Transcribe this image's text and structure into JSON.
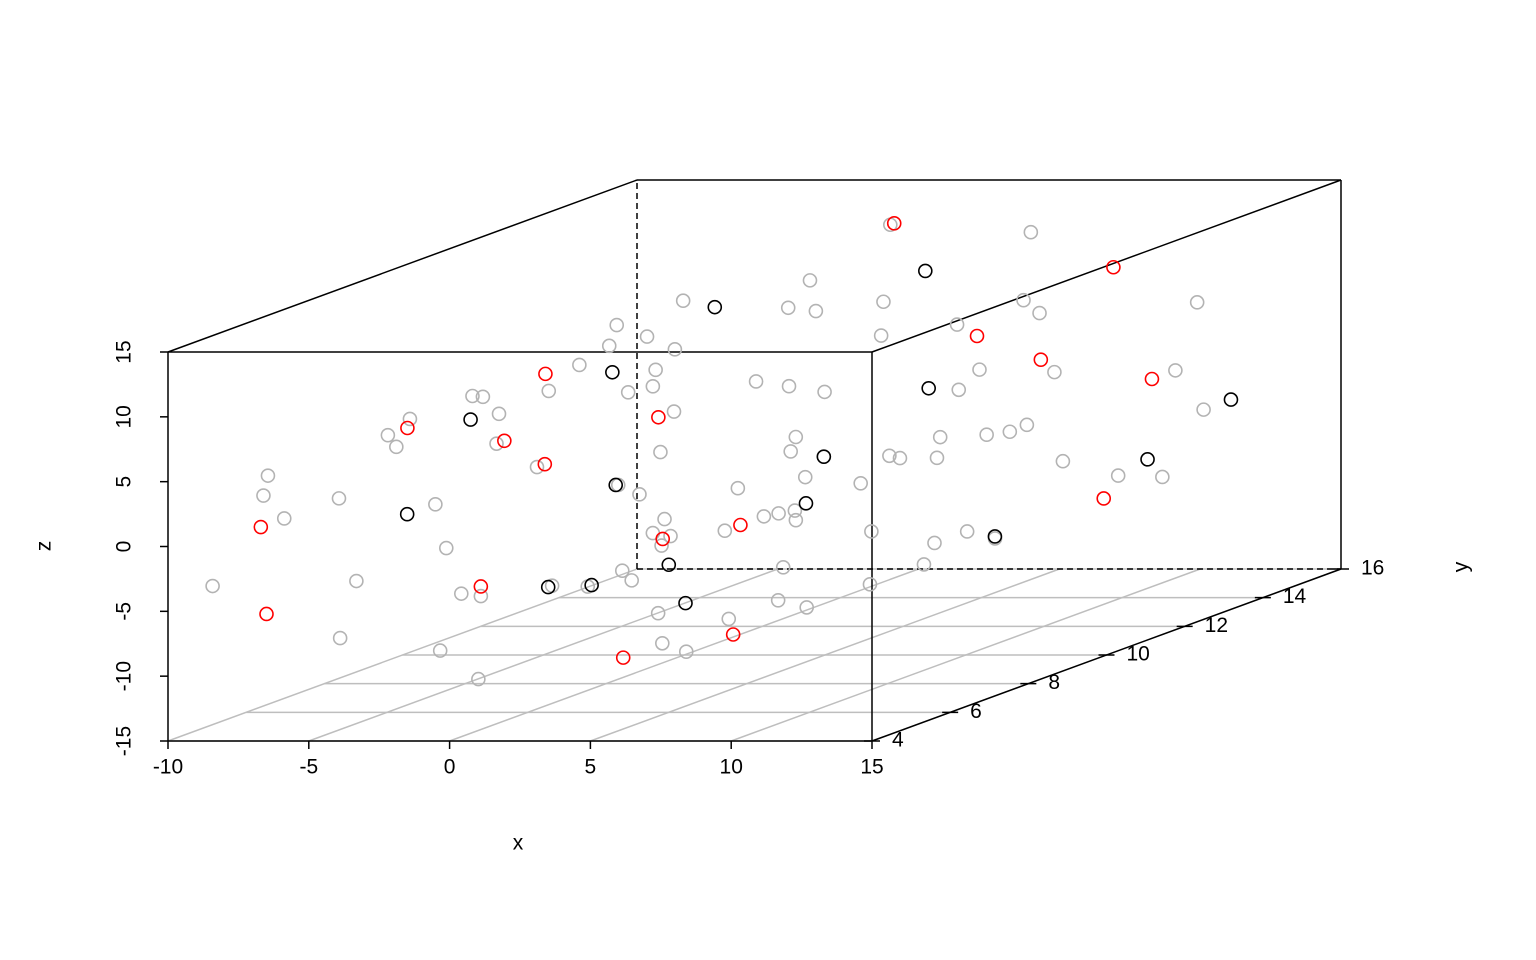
{
  "chart_data": {
    "type": "scatter3d",
    "xlabel": "x",
    "ylabel": "y",
    "zlabel": "z",
    "xlim": [
      -10,
      15
    ],
    "ylim": [
      4,
      16
    ],
    "zlim": [
      -15,
      15
    ],
    "xticks": [
      -10,
      -5,
      0,
      5,
      10,
      15
    ],
    "yticks": [
      4,
      6,
      8,
      10,
      12,
      14,
      16
    ],
    "zticks": [
      -15,
      -10,
      -5,
      0,
      5,
      10,
      15
    ],
    "grid": true,
    "series": [
      {
        "color": "#b3b3b3",
        "x": [
          0,
          1.42,
          2.94,
          4.35,
          5.47,
          6.18,
          6.35,
          5.91,
          4.85,
          3.25,
          1.25,
          -1.16,
          -3.58,
          -5.85,
          -7.7,
          -8.97,
          -9.48,
          -9.11,
          -7.89,
          -5.83,
          -3.11,
          0.05,
          3.39,
          6.6,
          9.35,
          11.39,
          12.48,
          12.45,
          11.28,
          9.0,
          5.79,
          1.91,
          0,
          1.42,
          2.94,
          4.35,
          5.47,
          6.18,
          6.35,
          5.91,
          4.85,
          3.25,
          1.25,
          -1.16,
          -3.58,
          -5.85,
          -7.7,
          -8.97,
          -9.48,
          -9.11,
          -7.89,
          -5.83,
          -3.11,
          0.05,
          3.39,
          6.6,
          9.35,
          11.39,
          12.48,
          12.45,
          11.28,
          9.0,
          5.79,
          1.91,
          0,
          1.42,
          2.94,
          4.35,
          5.47,
          6.18,
          6.35,
          5.91,
          4.85,
          3.25,
          1.25,
          -1.16,
          -3.58,
          -5.85,
          -7.7,
          -8.97,
          -9.48,
          -9.11,
          -7.89,
          -5.83,
          -3.11,
          0.05,
          3.39,
          6.6,
          9.35,
          11.39,
          12.48,
          12.45,
          11.28,
          9.0,
          5.79,
          1.91
        ],
        "y": [
          4.8,
          5.6,
          6.3,
          4.4,
          7.1,
          5.2,
          6.8,
          4.6,
          5.9,
          7.4,
          4.3,
          6.1,
          5.0,
          7.2,
          4.9,
          5.7,
          6.6,
          4.5,
          7.3,
          5.4,
          6.0,
          4.7,
          7.0,
          5.3,
          6.4,
          4.2,
          5.8,
          7.5,
          4.6,
          6.2,
          5.1,
          6.9,
          9.2,
          8.4,
          10.3,
          9.7,
          8.1,
          10.8,
          9.0,
          8.6,
          10.1,
          9.5,
          8.3,
          10.6,
          9.9,
          8.8,
          10.4,
          9.1,
          8.0,
          10.2,
          9.6,
          8.5,
          10.9,
          9.3,
          8.7,
          10.0,
          9.4,
          8.2,
          10.7,
          9.8,
          8.9,
          10.5,
          9.2,
          8.6,
          13.1,
          14.5,
          12.4,
          15.2,
          13.8,
          12.1,
          14.9,
          13.3,
          15.6,
          12.7,
          14.2,
          13.5,
          15.8,
          12.3,
          14.6,
          13.0,
          15.4,
          12.8,
          14.0,
          13.7,
          15.1,
          12.5,
          14.8,
          13.2,
          15.5,
          12.9,
          14.3,
          13.6,
          15.0,
          12.2,
          14.7,
          13.9
        ],
        "z": [
          -4.71,
          -4.79,
          -4.41,
          -3.53,
          -2.21,
          -0.52,
          1.4,
          3.36,
          5.18,
          6.65,
          7.6,
          7.91,
          7.48,
          6.3,
          4.47,
          2.05,
          -0.71,
          -3.6,
          -6.31,
          -8.61,
          -10.24,
          -11.0,
          -10.78,
          -9.55,
          -7.35,
          -4.37,
          -0.83,
          2.97,
          6.67,
          9.93,
          12.41,
          13.87,
          -4.71,
          -4.79,
          -4.41,
          -3.53,
          -2.21,
          -0.52,
          1.4,
          3.36,
          5.18,
          6.65,
          7.6,
          7.91,
          7.48,
          6.3,
          4.47,
          2.05,
          -0.71,
          -3.6,
          -6.31,
          -8.61,
          -10.24,
          -11.0,
          -10.78,
          -9.55,
          -7.35,
          -4.37,
          -0.83,
          2.97,
          6.67,
          9.93,
          12.41,
          13.87,
          -4.71,
          -4.79,
          -4.41,
          -3.53,
          -2.21,
          -0.52,
          1.4,
          3.36,
          5.18,
          6.65,
          7.6,
          7.91,
          7.48,
          6.3,
          4.47,
          2.05,
          -0.71,
          -3.6,
          -6.31,
          -8.61,
          -10.24,
          -11.0,
          -10.78,
          -9.55,
          -7.35,
          -4.37,
          -0.83,
          2.97,
          6.67,
          9.93,
          12.41,
          13.87
        ]
      },
      {
        "color": "#000000",
        "x": [
          -1.16,
          -5.85,
          -9.14,
          0.05,
          4.35,
          9.65,
          11.6,
          12.48,
          5.91,
          -3.32,
          6.35,
          -8.97,
          1.42,
          5.79,
          -7.98,
          2.94
        ],
        "y": [
          9,
          15,
          9.5,
          10,
          4.5,
          11,
          13.5,
          15,
          12,
          12,
          9,
          11,
          5.5,
          12,
          14,
          11
        ],
        "z": [
          7.91,
          6.3,
          -3.59,
          -11.0,
          -3.53,
          -6.96,
          -3.78,
          -0.83,
          3.36,
          -10.25,
          1.4,
          2.05,
          -4.79,
          12.41,
          -6.31,
          -4.41
        ]
      },
      {
        "color": "#ff0000",
        "x": [
          5.47,
          6.18,
          4.85,
          -7.7,
          -9.11,
          3.39,
          6.6,
          -7.89,
          11.28,
          9.0,
          1.91,
          -5.83,
          -3.58,
          1.25,
          9.35,
          3.25,
          -9.48,
          12.45
        ],
        "y": [
          7.5,
          5,
          14,
          12,
          13,
          6,
          6.5,
          5,
          11,
          14.5,
          14,
          9,
          5.5,
          4.5,
          14,
          7,
          6,
          13
        ],
        "z": [
          -2.21,
          -0.52,
          5.18,
          4.47,
          -3.6,
          -10.78,
          -9.55,
          -6.31,
          6.67,
          9.93,
          13.87,
          -8.61,
          7.48,
          7.6,
          -7.35,
          6.65,
          -0.71,
          2.97
        ]
      }
    ]
  }
}
